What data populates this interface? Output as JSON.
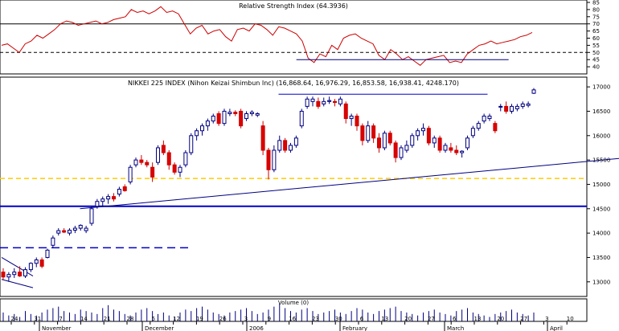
{
  "chart_data": {
    "type": "candlestick",
    "panels": {
      "rsi": {
        "title": "Relative Strength Index (64.3936)",
        "ylim": [
          35,
          85
        ],
        "yticks": [
          85,
          80,
          75,
          70,
          65,
          60,
          55,
          50,
          45,
          40
        ],
        "reference_lines": [
          70,
          50
        ]
      },
      "price": {
        "title": "NIKKEI 225 INDEX (Nihon Keizai Shimbun Inc) (16,868.64, 16,976.29, 16,853.58, 16,938.41, 4248.170)",
        "ylim": [
          12700,
          17200
        ],
        "yticks": [
          17000,
          16500,
          16000,
          15500,
          15000,
          14500,
          14000,
          13500,
          13000
        ],
        "horizontal_lines": [
          {
            "value": 14550,
            "style": "solid",
            "color": "#0000cc"
          },
          {
            "value": 15120,
            "style": "dashed",
            "color": "#ffcc00"
          },
          {
            "value": 13700,
            "style": "dashed",
            "color": "#0000cc"
          }
        ]
      },
      "volume": {
        "title": "Volume (0)"
      }
    },
    "x_axis": {
      "day_labels": [
        "24",
        "31",
        "7",
        "14",
        "21",
        "28",
        "5",
        "12",
        "19",
        "26",
        "3",
        "9",
        "16",
        "23",
        "30",
        "6",
        "13",
        "20",
        "27",
        "6",
        "13",
        "20",
        "27",
        "3",
        "10"
      ],
      "month_labels": [
        "November",
        "December",
        "2006",
        "February",
        "March",
        "April"
      ]
    },
    "candles": [
      {
        "x": 0,
        "o": 13200,
        "h": 13280,
        "l": 13050,
        "c": 13100
      },
      {
        "x": 1,
        "o": 13100,
        "h": 13200,
        "l": 13000,
        "c": 13150
      },
      {
        "x": 2,
        "o": 13150,
        "h": 13280,
        "l": 13080,
        "c": 13200
      },
      {
        "x": 3,
        "o": 13200,
        "h": 13320,
        "l": 13100,
        "c": 13120
      },
      {
        "x": 4,
        "o": 13120,
        "h": 13300,
        "l": 13080,
        "c": 13250
      },
      {
        "x": 5,
        "o": 13250,
        "h": 13400,
        "l": 13200,
        "c": 13380
      },
      {
        "x": 6,
        "o": 13380,
        "h": 13500,
        "l": 13300,
        "c": 13450
      },
      {
        "x": 7,
        "o": 13450,
        "h": 13500,
        "l": 13280,
        "c": 13320
      },
      {
        "x": 8,
        "o": 13500,
        "h": 13680,
        "l": 13480,
        "c": 13650
      },
      {
        "x": 9,
        "o": 13750,
        "h": 13950,
        "l": 13700,
        "c": 13900
      },
      {
        "x": 10,
        "o": 14000,
        "h": 14100,
        "l": 13950,
        "c": 14050
      },
      {
        "x": 11,
        "o": 14050,
        "h": 14100,
        "l": 14000,
        "c": 14020
      },
      {
        "x": 12,
        "o": 14000,
        "h": 14100,
        "l": 13950,
        "c": 14060
      },
      {
        "x": 13,
        "o": 14060,
        "h": 14150,
        "l": 14000,
        "c": 14100
      },
      {
        "x": 14,
        "o": 14100,
        "h": 14180,
        "l": 14050,
        "c": 14160
      },
      {
        "x": 15,
        "o": 14050,
        "h": 14150,
        "l": 14000,
        "c": 14100
      },
      {
        "x": 16,
        "o": 14200,
        "h": 14550,
        "l": 14150,
        "c": 14500
      },
      {
        "x": 17,
        "o": 14550,
        "h": 14700,
        "l": 14500,
        "c": 14650
      },
      {
        "x": 18,
        "o": 14650,
        "h": 14750,
        "l": 14550,
        "c": 14700
      },
      {
        "x": 19,
        "o": 14700,
        "h": 14800,
        "l": 14600,
        "c": 14750
      },
      {
        "x": 20,
        "o": 14750,
        "h": 14820,
        "l": 14650,
        "c": 14700
      },
      {
        "x": 21,
        "o": 14800,
        "h": 14950,
        "l": 14750,
        "c": 14900
      },
      {
        "x": 22,
        "o": 14950,
        "h": 15000,
        "l": 14850,
        "c": 14870
      },
      {
        "x": 23,
        "o": 15050,
        "h": 15400,
        "l": 15000,
        "c": 15350
      },
      {
        "x": 24,
        "o": 15400,
        "h": 15550,
        "l": 15350,
        "c": 15500
      },
      {
        "x": 25,
        "o": 15500,
        "h": 15600,
        "l": 15400,
        "c": 15450
      },
      {
        "x": 26,
        "o": 15450,
        "h": 15500,
        "l": 15350,
        "c": 15400
      },
      {
        "x": 27,
        "o": 15350,
        "h": 15450,
        "l": 15050,
        "c": 15150
      },
      {
        "x": 28,
        "o": 15450,
        "h": 15800,
        "l": 15400,
        "c": 15750
      },
      {
        "x": 29,
        "o": 15800,
        "h": 15900,
        "l": 15600,
        "c": 15650
      },
      {
        "x": 30,
        "o": 15650,
        "h": 15700,
        "l": 15300,
        "c": 15400
      },
      {
        "x": 31,
        "o": 15400,
        "h": 15450,
        "l": 15200,
        "c": 15250
      },
      {
        "x": 32,
        "o": 15250,
        "h": 15400,
        "l": 15150,
        "c": 15350
      },
      {
        "x": 33,
        "o": 15400,
        "h": 15700,
        "l": 15350,
        "c": 15650
      },
      {
        "x": 34,
        "o": 15650,
        "h": 16050,
        "l": 15600,
        "c": 16000
      },
      {
        "x": 35,
        "o": 16000,
        "h": 16150,
        "l": 15900,
        "c": 16100
      },
      {
        "x": 36,
        "o": 16100,
        "h": 16250,
        "l": 16000,
        "c": 16200
      },
      {
        "x": 37,
        "o": 16200,
        "h": 16350,
        "l": 16100,
        "c": 16300
      },
      {
        "x": 38,
        "o": 16300,
        "h": 16450,
        "l": 16250,
        "c": 16400
      },
      {
        "x": 39,
        "o": 16450,
        "h": 16500,
        "l": 16200,
        "c": 16250
      },
      {
        "x": 40,
        "o": 16250,
        "h": 16550,
        "l": 16200,
        "c": 16500
      },
      {
        "x": 41,
        "o": 16450,
        "h": 16550,
        "l": 16400,
        "c": 16480
      },
      {
        "x": 42,
        "o": 16480,
        "h": 16520,
        "l": 16400,
        "c": 16450
      },
      {
        "x": 43,
        "o": 16500,
        "h": 16550,
        "l": 16150,
        "c": 16200
      },
      {
        "x": 44,
        "o": 16350,
        "h": 16500,
        "l": 16300,
        "c": 16450
      },
      {
        "x": 45,
        "o": 16450,
        "h": 16520,
        "l": 16400,
        "c": 16480
      },
      {
        "x": 46,
        "o": 16420,
        "h": 16480,
        "l": 16380,
        "c": 16450
      },
      {
        "x": 47,
        "o": 16200,
        "h": 16300,
        "l": 15600,
        "c": 15700
      },
      {
        "x": 48,
        "o": 15700,
        "h": 15750,
        "l": 15100,
        "c": 15300
      },
      {
        "x": 49,
        "o": 15300,
        "h": 15800,
        "l": 15250,
        "c": 15700
      },
      {
        "x": 50,
        "o": 15700,
        "h": 16000,
        "l": 15650,
        "c": 15900
      },
      {
        "x": 51,
        "o": 15900,
        "h": 15950,
        "l": 15650,
        "c": 15700
      },
      {
        "x": 52,
        "o": 15700,
        "h": 15850,
        "l": 15650,
        "c": 15800
      },
      {
        "x": 53,
        "o": 15800,
        "h": 16000,
        "l": 15750,
        "c": 15950
      },
      {
        "x": 54,
        "o": 16200,
        "h": 16550,
        "l": 16150,
        "c": 16500
      },
      {
        "x": 55,
        "o": 16600,
        "h": 16800,
        "l": 16550,
        "c": 16750
      },
      {
        "x": 56,
        "o": 16700,
        "h": 16800,
        "l": 16600,
        "c": 16750
      },
      {
        "x": 57,
        "o": 16700,
        "h": 16780,
        "l": 16550,
        "c": 16600
      },
      {
        "x": 58,
        "o": 16650,
        "h": 16780,
        "l": 16600,
        "c": 16700
      },
      {
        "x": 59,
        "o": 16700,
        "h": 16800,
        "l": 16650,
        "c": 16720
      },
      {
        "x": 60,
        "o": 16700,
        "h": 16750,
        "l": 16600,
        "c": 16680
      },
      {
        "x": 61,
        "o": 16650,
        "h": 16800,
        "l": 16600,
        "c": 16750
      },
      {
        "x": 62,
        "o": 16650,
        "h": 16700,
        "l": 16250,
        "c": 16350
      },
      {
        "x": 63,
        "o": 16350,
        "h": 16450,
        "l": 16200,
        "c": 16400
      },
      {
        "x": 64,
        "o": 16400,
        "h": 16450,
        "l": 16100,
        "c": 16200
      },
      {
        "x": 65,
        "o": 16200,
        "h": 16250,
        "l": 15800,
        "c": 15900
      },
      {
        "x": 66,
        "o": 15900,
        "h": 16300,
        "l": 15850,
        "c": 16200
      },
      {
        "x": 67,
        "o": 16200,
        "h": 16250,
        "l": 15850,
        "c": 15950
      },
      {
        "x": 68,
        "o": 15950,
        "h": 16050,
        "l": 15650,
        "c": 15750
      },
      {
        "x": 69,
        "o": 15750,
        "h": 16100,
        "l": 15700,
        "c": 16050
      },
      {
        "x": 70,
        "o": 16050,
        "h": 16100,
        "l": 15800,
        "c": 15850
      },
      {
        "x": 71,
        "o": 15850,
        "h": 15900,
        "l": 15450,
        "c": 15550
      },
      {
        "x": 72,
        "o": 15550,
        "h": 15800,
        "l": 15500,
        "c": 15750
      },
      {
        "x": 73,
        "o": 15700,
        "h": 15900,
        "l": 15650,
        "c": 15800
      },
      {
        "x": 74,
        "o": 15800,
        "h": 16050,
        "l": 15750,
        "c": 16000
      },
      {
        "x": 75,
        "o": 16000,
        "h": 16150,
        "l": 15900,
        "c": 16100
      },
      {
        "x": 76,
        "o": 16100,
        "h": 16250,
        "l": 16000,
        "c": 16150
      },
      {
        "x": 77,
        "o": 16150,
        "h": 16200,
        "l": 15800,
        "c": 15850
      },
      {
        "x": 78,
        "o": 15850,
        "h": 16000,
        "l": 15750,
        "c": 15950
      },
      {
        "x": 79,
        "o": 15950,
        "h": 16000,
        "l": 15650,
        "c": 15700
      },
      {
        "x": 80,
        "o": 15700,
        "h": 15850,
        "l": 15650,
        "c": 15800
      },
      {
        "x": 81,
        "o": 15750,
        "h": 15850,
        "l": 15650,
        "c": 15700
      },
      {
        "x": 82,
        "o": 15700,
        "h": 15800,
        "l": 15600,
        "c": 15650
      },
      {
        "x": 83,
        "o": 15650,
        "h": 15700,
        "l": 15550,
        "c": 15680
      },
      {
        "x": 84,
        "o": 15750,
        "h": 16000,
        "l": 15700,
        "c": 15950
      },
      {
        "x": 85,
        "o": 16000,
        "h": 16200,
        "l": 15950,
        "c": 16150
      },
      {
        "x": 86,
        "o": 16150,
        "h": 16300,
        "l": 16100,
        "c": 16250
      },
      {
        "x": 87,
        "o": 16300,
        "h": 16450,
        "l": 16250,
        "c": 16400
      },
      {
        "x": 88,
        "o": 16350,
        "h": 16450,
        "l": 16300,
        "c": 16400
      },
      {
        "x": 89,
        "o": 16250,
        "h": 16300,
        "l": 16050,
        "c": 16100
      },
      {
        "x": 90,
        "o": 16600,
        "h": 16650,
        "l": 16500,
        "c": 16600
      },
      {
        "x": 91,
        "o": 16600,
        "h": 16700,
        "l": 16450,
        "c": 16500
      },
      {
        "x": 92,
        "o": 16500,
        "h": 16650,
        "l": 16450,
        "c": 16600
      },
      {
        "x": 93,
        "o": 16550,
        "h": 16650,
        "l": 16500,
        "c": 16600
      },
      {
        "x": 94,
        "o": 16600,
        "h": 16700,
        "l": 16550,
        "c": 16650
      },
      {
        "x": 95,
        "o": 16620,
        "h": 16700,
        "l": 16580,
        "c": 16650
      },
      {
        "x": 96,
        "o": 16868.64,
        "h": 16976.29,
        "l": 16853.58,
        "c": 16938.41
      }
    ],
    "rsi_values": [
      55,
      56,
      53,
      50,
      56,
      58,
      62,
      60,
      63,
      66,
      70,
      72,
      71,
      69,
      70,
      71,
      72,
      70,
      71,
      73,
      74,
      75,
      80,
      78,
      79,
      77,
      79,
      82,
      78,
      79,
      77,
      70,
      63,
      67,
      69,
      63,
      65,
      66,
      61,
      58,
      66,
      67,
      65,
      70,
      69,
      66,
      62,
      68,
      67,
      65,
      63,
      58,
      46,
      43,
      49,
      47,
      55,
      52,
      60,
      62,
      63,
      60,
      58,
      56,
      48,
      45,
      52,
      49,
      45,
      47,
      44,
      41,
      45,
      46,
      47,
      48,
      43,
      44,
      43,
      49,
      52,
      55,
      56,
      58,
      56,
      57,
      58,
      59,
      61,
      62,
      64
    ],
    "volume_values": [
      6,
      4,
      5,
      3,
      7,
      5,
      4,
      6,
      8,
      9,
      10,
      7,
      6,
      5,
      8,
      7,
      6,
      5,
      9,
      11,
      8,
      7,
      5,
      4,
      6,
      8,
      9,
      7,
      5,
      6,
      4,
      3,
      6,
      8,
      7,
      9,
      10,
      8,
      6,
      5,
      4,
      6,
      7,
      8,
      9,
      7,
      5,
      6,
      8,
      10,
      12,
      9,
      7,
      6,
      8,
      9,
      7,
      5,
      6,
      7,
      8,
      6,
      5,
      7,
      9,
      8,
      6,
      5,
      7,
      8,
      9,
      10,
      7,
      6,
      5,
      4,
      6,
      7,
      8,
      6,
      5,
      4,
      7,
      8,
      9,
      6,
      5,
      4,
      3,
      5,
      6,
      7,
      8,
      6,
      5,
      4,
      6
    ],
    "trendlines": [
      {
        "panel": "price",
        "from": {
          "x": 15,
          "y": 14500
        },
        "to": {
          "x": 150,
          "y": 15850
        },
        "color": "#000080"
      },
      {
        "panel": "price",
        "from": {
          "x": 53,
          "y": 16850
        },
        "to": {
          "x": 93,
          "y": 16850
        },
        "color": "#0000cc"
      },
      {
        "panel": "price",
        "from": {
          "x": 0,
          "y": 13500
        },
        "to": {
          "x": 6,
          "y": 13120
        },
        "color": "#000080"
      },
      {
        "panel": "price",
        "from": {
          "x": 0,
          "y": 13050
        },
        "to": {
          "x": 6,
          "y": 12880
        },
        "color": "#000080"
      },
      {
        "panel": "rsi",
        "from": {
          "x": 50,
          "y": 45
        },
        "to": {
          "x": 86,
          "y": 45
        },
        "color": "#000080"
      }
    ]
  }
}
